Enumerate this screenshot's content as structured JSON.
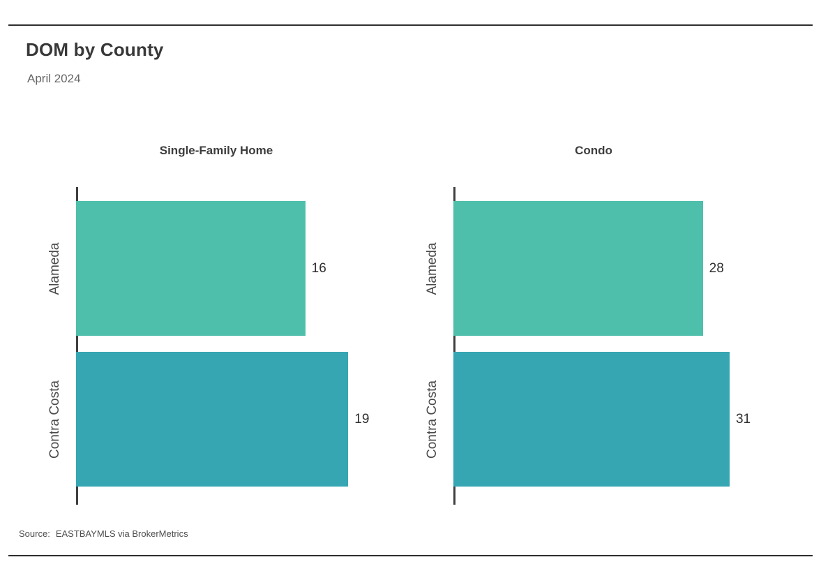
{
  "page": {
    "source_label": "Source:",
    "source_text": "EASTBAYMLS via BrokerMetrics"
  },
  "chart_data": {
    "type": "bar",
    "orientation": "horizontal",
    "title": "DOM by County",
    "subtitle": "April 2024",
    "categories": [
      "Alameda",
      "Contra Costa"
    ],
    "bar_colors": [
      "#4dbfab",
      "#37a6b3"
    ],
    "panels": [
      {
        "title": "Single-Family Home",
        "values": [
          16,
          19
        ],
        "xlim": [
          0,
          22.2
        ]
      },
      {
        "title": "Condo",
        "values": [
          28,
          31
        ],
        "xlim": [
          0,
          35.7
        ]
      }
    ],
    "grid": false,
    "legend_position": "none",
    "value_labels_shown": true,
    "source": "Source: EASTBAYMLS via BrokerMetrics"
  }
}
